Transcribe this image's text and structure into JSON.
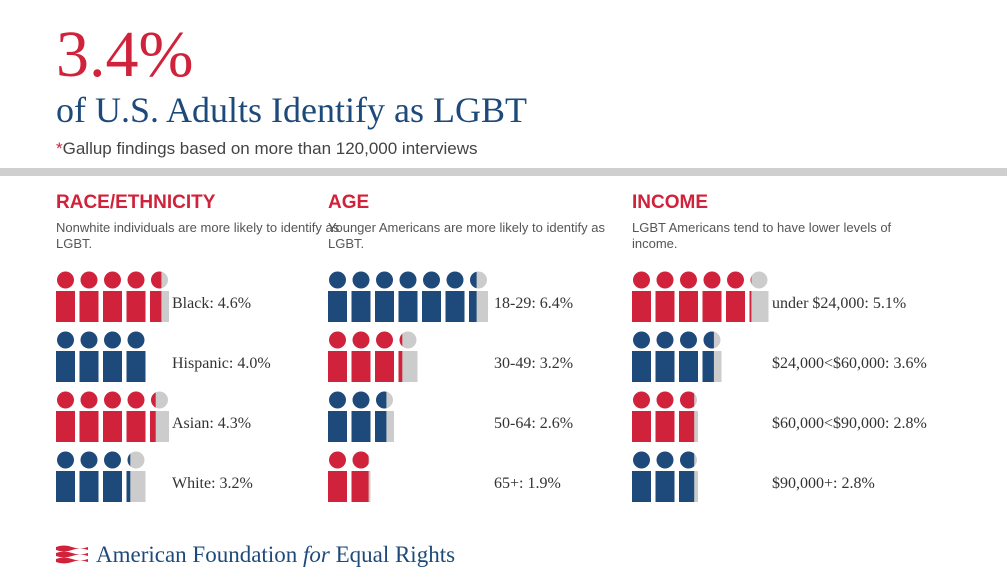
{
  "header": {
    "headline": "3.4%",
    "subheadline": "of U.S. Adults Identify as LGBT",
    "note_star": "*",
    "note": "Gallup findings based on more than 120,000 interviews"
  },
  "colors": {
    "red": "#d0223a",
    "blue": "#1d4a7a",
    "gray": "#cccccc"
  },
  "chart_data": [
    {
      "type": "bar",
      "title": "RACE/ETHNICITY",
      "subtitle": "Nonwhite individuals are more likely to identify as LGBT.",
      "unit": "%",
      "categories": [
        "Black",
        "Hispanic",
        "Asian",
        "White"
      ],
      "values": [
        4.6,
        4.0,
        4.3,
        3.2
      ],
      "labels": [
        "Black: 4.6%",
        "Hispanic: 4.0%",
        "Asian: 4.3%",
        "White: 3.2%"
      ],
      "colors": [
        "red",
        "blue",
        "red",
        "blue"
      ]
    },
    {
      "type": "bar",
      "title": "AGE",
      "subtitle": "Younger Americans are more likely to identify as LGBT.",
      "unit": "%",
      "categories": [
        "18-29",
        "30-49",
        "50-64",
        "65+"
      ],
      "values": [
        6.4,
        3.2,
        2.6,
        1.9
      ],
      "labels": [
        "18-29: 6.4%",
        "30-49: 3.2%",
        "50-64: 2.6%",
        "65+: 1.9%"
      ],
      "colors": [
        "blue",
        "red",
        "blue",
        "red"
      ]
    },
    {
      "type": "bar",
      "title": "INCOME",
      "subtitle": "LGBT Americans tend to have lower levels of income.",
      "unit": "%",
      "categories": [
        "under $24,000",
        "$24,000<$60,000",
        "$60,000<$90,000",
        "$90,000+"
      ],
      "values": [
        5.1,
        3.6,
        2.8,
        2.8
      ],
      "labels": [
        "under $24,000: 5.1%",
        "$24,000<$60,000: 3.6%",
        "$60,000<$90,000: 2.8%",
        "$90,000+: 2.8%"
      ],
      "colors": [
        "red",
        "blue",
        "red",
        "blue"
      ]
    }
  ],
  "footer": {
    "org_part1": "American Foundation ",
    "org_for": "for",
    "org_part2": " Equal Rights"
  }
}
